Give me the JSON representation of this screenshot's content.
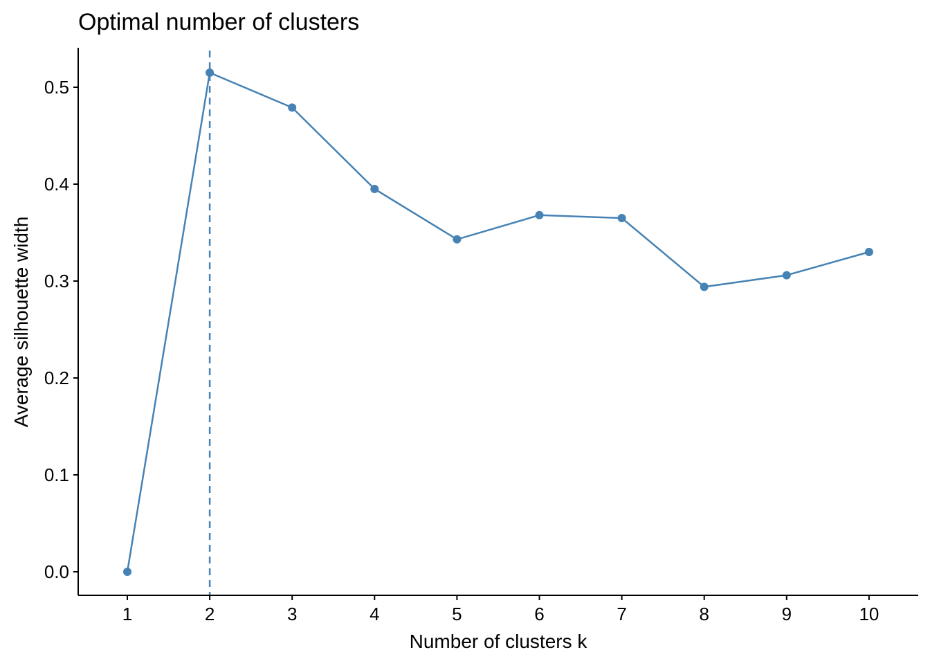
{
  "chart_data": {
    "type": "line",
    "title": "Optimal number of clusters",
    "xlabel": "Number of clusters k",
    "ylabel": "Average silhouette width",
    "categories": [
      "1",
      "2",
      "3",
      "4",
      "5",
      "6",
      "7",
      "8",
      "9",
      "10"
    ],
    "series": [
      {
        "values": [
          0.0,
          0.515,
          0.479,
          0.395,
          0.343,
          0.368,
          0.365,
          0.294,
          0.306,
          0.33
        ],
        "color": "#4682B4"
      }
    ],
    "optimal_k": "2",
    "optimal_line_color": "#4682B4",
    "optimal_line_style": "dashed",
    "ylim": [
      -0.025,
      0.54
    ],
    "yticks": [
      0.0,
      0.1,
      0.2,
      0.3,
      0.4,
      0.5
    ],
    "ytick_labels": [
      "0.0",
      "0.1",
      "0.2",
      "0.3",
      "0.4",
      "0.5"
    ],
    "grid": false,
    "legend": "none"
  }
}
